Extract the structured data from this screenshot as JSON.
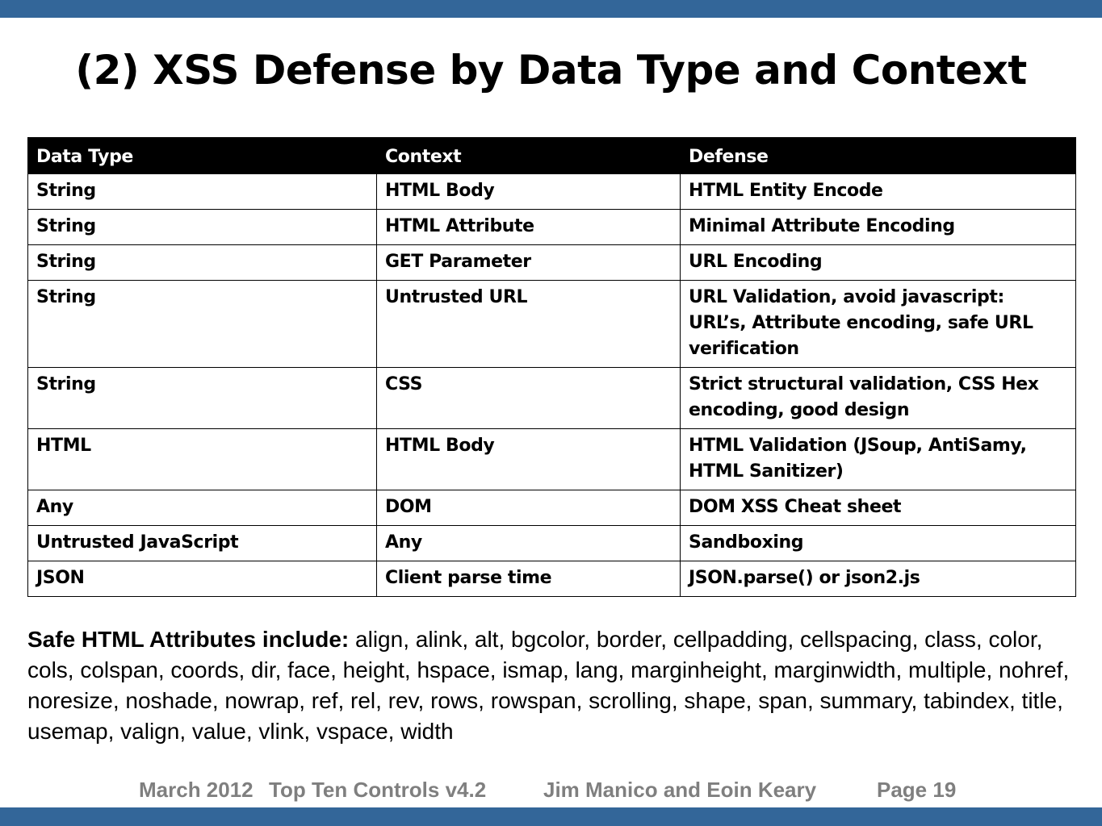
{
  "title": "(2) XSS Defense by Data Type and Context",
  "table": {
    "headers": [
      "Data Type",
      "Context",
      "Defense"
    ],
    "rows": [
      [
        "String",
        "HTML Body",
        "HTML Entity Encode"
      ],
      [
        "String",
        "HTML Attribute",
        "Minimal Attribute Encoding"
      ],
      [
        "String",
        "GET Parameter",
        "URL Encoding"
      ],
      [
        "String",
        "Untrusted URL",
        "URL Validation, avoid javascript: URL’s, Attribute encoding, safe URL verification"
      ],
      [
        "String",
        "CSS",
        "Strict structural validation, CSS Hex encoding, good design"
      ],
      [
        "HTML",
        "HTML Body",
        "HTML Validation (JSoup, AntiSamy, HTML Sanitizer)"
      ],
      [
        "Any",
        "DOM",
        "DOM XSS Cheat sheet"
      ],
      [
        "Untrusted JavaScript",
        "Any",
        "Sandboxing"
      ],
      [
        "JSON",
        "Client parse time",
        "JSON.parse() or json2.js"
      ]
    ]
  },
  "safe_attributes": {
    "label": "Safe HTML Attributes include:",
    "text": " align, alink, alt, bgcolor, border, cellpadding, cellspacing, class, color, cols, colspan, coords, dir, face, height, hspace, ismap, lang, marginheight, marginwidth, multiple, nohref, noresize, noshade, nowrap, ref, rel, rev, rows, rowspan, scrolling, shape, span, summary, tabindex, title, usemap, valign, value, vlink, vspace, width"
  },
  "footer": {
    "date": "March 2012",
    "deck": "Top Ten Controls v4.2",
    "authors": "Jim Manico and Eoin Keary",
    "page": "Page 19"
  },
  "colors": {
    "bar": "#336699",
    "header_bg": "#000000",
    "footer_text": "#7f7f7f"
  }
}
